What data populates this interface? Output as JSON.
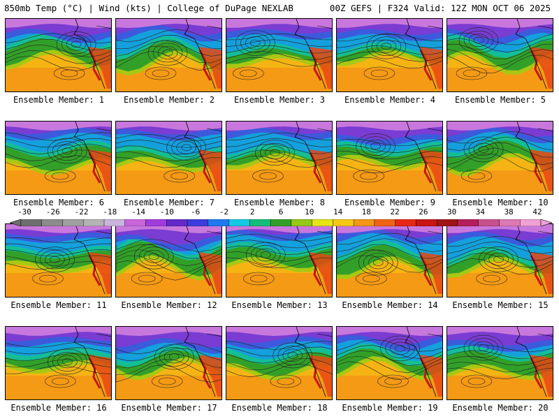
{
  "header": {
    "left": "850mb Temp (°C) | Wind (kts) | College of DuPage NEXLAB",
    "right": "00Z GEFS | F324 Valid: 12Z MON OCT 06 2025"
  },
  "members": [
    {
      "label": "Ensemble Member: 1"
    },
    {
      "label": "Ensemble Member: 2"
    },
    {
      "label": "Ensemble Member: 3"
    },
    {
      "label": "Ensemble Member: 4"
    },
    {
      "label": "Ensemble Member: 5"
    },
    {
      "label": "Ensemble Member: 6"
    },
    {
      "label": "Ensemble Member: 7"
    },
    {
      "label": "Ensemble Member: 8"
    },
    {
      "label": "Ensemble Member: 9"
    },
    {
      "label": "Ensemble Member: 10"
    },
    {
      "label": "Ensemble Member: 11"
    },
    {
      "label": "Ensemble Member: 12"
    },
    {
      "label": "Ensemble Member: 13"
    },
    {
      "label": "Ensemble Member: 14"
    },
    {
      "label": "Ensemble Member: 15"
    },
    {
      "label": "Ensemble Member: 16"
    },
    {
      "label": "Ensemble Member: 17"
    },
    {
      "label": "Ensemble Member: 18"
    },
    {
      "label": "Ensemble Member: 19"
    },
    {
      "label": "Ensemble Member: 20"
    }
  ],
  "colorbar": {
    "labels": [
      "-30",
      "-26",
      "-22",
      "-18",
      "-14",
      "-10",
      "-6",
      "-2",
      "2",
      "6",
      "10",
      "14",
      "18",
      "22",
      "26",
      "30",
      "34",
      "38",
      "42"
    ],
    "colors": [
      "#6e6e6e",
      "#8c8c8c",
      "#a0a0a0",
      "#b4b4b4",
      "#c8b4dc",
      "#c864dc",
      "#a03cdc",
      "#6428c8",
      "#3c3cdc",
      "#1e78f0",
      "#14c8e6",
      "#14be78",
      "#32a028",
      "#96c814",
      "#e6e614",
      "#f5c814",
      "#f59614",
      "#f06414",
      "#e62814",
      "#c81414",
      "#a01414",
      "#b41e5a",
      "#c8508c",
      "#dc78b4",
      "#f0a0d2"
    ]
  }
}
